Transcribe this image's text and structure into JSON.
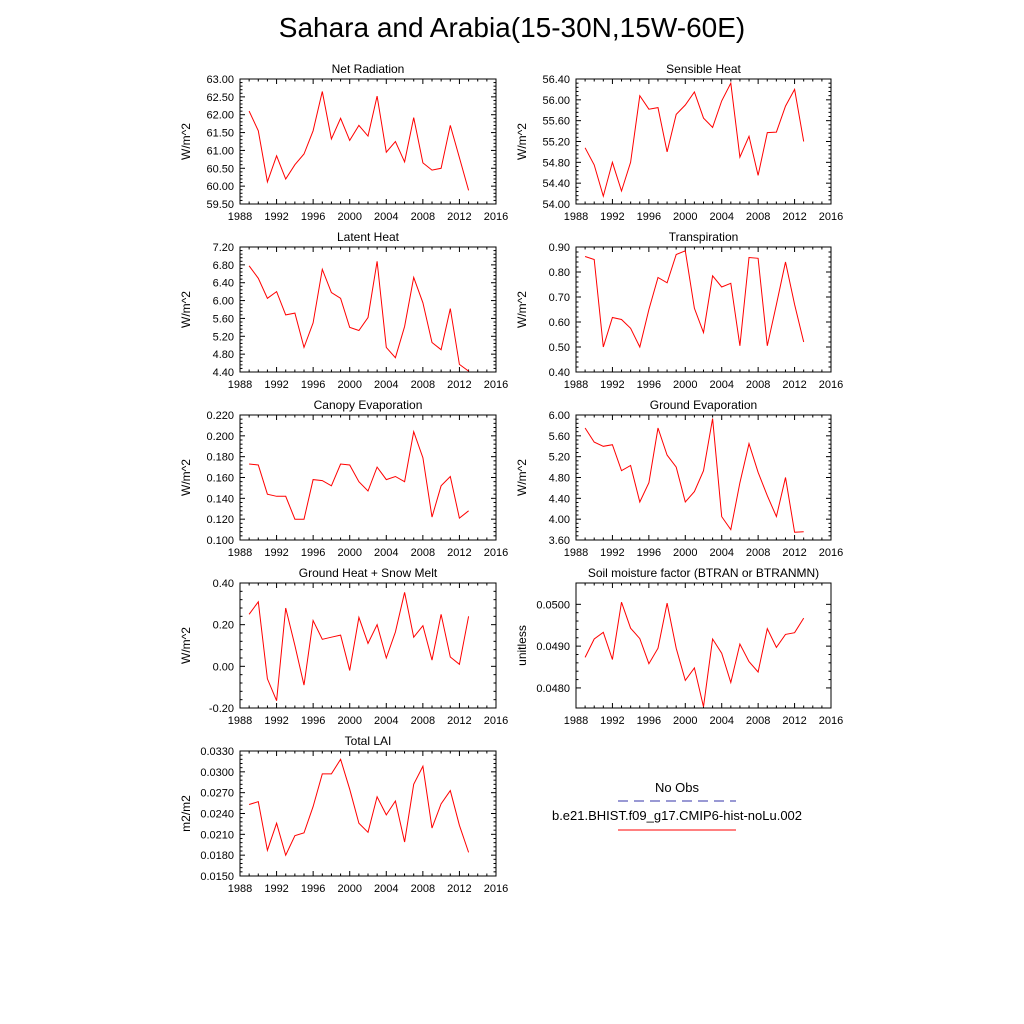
{
  "title": "Sahara and Arabia(15-30N,15W-60E)",
  "colors": {
    "model_line": "#ff0000",
    "obs_line": "#3333aa",
    "axis": "#000000"
  },
  "legend": {
    "obs_label": "No Obs",
    "model_label": "b.e21.BHIST.f09_g17.CMIP6-hist-noLu.002"
  },
  "chart_data": [
    {
      "type": "line",
      "title": "Net Radiation",
      "ylabel": "W/m^2",
      "xlim": [
        1988,
        2016
      ],
      "ylim": [
        59.5,
        63.0
      ],
      "xticks": [
        "1988",
        "1992",
        "1996",
        "2000",
        "2004",
        "2008",
        "2012",
        "2016"
      ],
      "yticks": [
        "59.50",
        "60.00",
        "60.50",
        "61.00",
        "61.50",
        "62.00",
        "62.50",
        "63.00"
      ],
      "x": [
        1989,
        1990,
        1991,
        1992,
        1993,
        1994,
        1995,
        1996,
        1997,
        1998,
        1999,
        2000,
        2001,
        2002,
        2003,
        2004,
        2005,
        2006,
        2007,
        2008,
        2009,
        2010,
        2011,
        2012,
        2013
      ],
      "values": [
        62.1,
        61.55,
        60.12,
        60.85,
        60.2,
        60.6,
        60.9,
        61.55,
        62.65,
        61.32,
        61.9,
        61.28,
        61.7,
        61.4,
        62.52,
        60.95,
        61.25,
        60.68,
        61.92,
        60.65,
        60.45,
        60.5,
        61.7,
        60.8,
        59.88
      ]
    },
    {
      "type": "line",
      "title": "Sensible Heat",
      "ylabel": "W/m^2",
      "xlim": [
        1988,
        2016
      ],
      "ylim": [
        54.0,
        56.4
      ],
      "xticks": [
        "1988",
        "1992",
        "1996",
        "2000",
        "2004",
        "2008",
        "2012",
        "2016"
      ],
      "yticks": [
        "54.00",
        "54.40",
        "54.80",
        "55.20",
        "55.60",
        "56.00",
        "56.40"
      ],
      "x": [
        1989,
        1990,
        1991,
        1992,
        1993,
        1994,
        1995,
        1996,
        1997,
        1998,
        1999,
        2000,
        2001,
        2002,
        2003,
        2004,
        2005,
        2006,
        2007,
        2008,
        2009,
        2010,
        2011,
        2012,
        2013
      ],
      "values": [
        55.08,
        54.75,
        54.15,
        54.8,
        54.25,
        54.8,
        56.08,
        55.82,
        55.85,
        55.0,
        55.72,
        55.9,
        56.15,
        55.65,
        55.47,
        55.98,
        56.32,
        54.9,
        55.3,
        54.55,
        55.37,
        55.38,
        55.88,
        56.2,
        55.2
      ]
    },
    {
      "type": "line",
      "title": "Latent Heat",
      "ylabel": "W/m^2",
      "xlim": [
        1988,
        2016
      ],
      "ylim": [
        4.4,
        7.2
      ],
      "xticks": [
        "1988",
        "1992",
        "1996",
        "2000",
        "2004",
        "2008",
        "2012",
        "2016"
      ],
      "yticks": [
        "4.40",
        "4.80",
        "5.20",
        "5.60",
        "6.00",
        "6.40",
        "6.80",
        "7.20"
      ],
      "x": [
        1989,
        1990,
        1991,
        1992,
        1993,
        1994,
        1995,
        1996,
        1997,
        1998,
        1999,
        2000,
        2001,
        2002,
        2003,
        2004,
        2005,
        2006,
        2007,
        2008,
        2009,
        2010,
        2011,
        2012,
        2013
      ],
      "values": [
        6.78,
        6.5,
        6.05,
        6.2,
        5.68,
        5.72,
        4.95,
        5.5,
        6.7,
        6.18,
        6.05,
        5.4,
        5.33,
        5.62,
        6.88,
        4.95,
        4.72,
        5.42,
        6.52,
        5.95,
        5.06,
        4.9,
        5.82,
        4.57,
        4.42
      ]
    },
    {
      "type": "line",
      "title": "Transpiration",
      "ylabel": "W/m^2",
      "xlim": [
        1988,
        2016
      ],
      "ylim": [
        0.4,
        0.9
      ],
      "xticks": [
        "1988",
        "1992",
        "1996",
        "2000",
        "2004",
        "2008",
        "2012",
        "2016"
      ],
      "yticks": [
        "0.40",
        "0.50",
        "0.60",
        "0.70",
        "0.80",
        "0.90"
      ],
      "x": [
        1989,
        1990,
        1991,
        1992,
        1993,
        1994,
        1995,
        1996,
        1997,
        1998,
        1999,
        2000,
        2001,
        2002,
        2003,
        2004,
        2005,
        2006,
        2007,
        2008,
        2009,
        2010,
        2011,
        2012,
        2013
      ],
      "values": [
        0.862,
        0.85,
        0.5,
        0.618,
        0.61,
        0.575,
        0.5,
        0.65,
        0.778,
        0.757,
        0.87,
        0.885,
        0.655,
        0.558,
        0.785,
        0.74,
        0.755,
        0.505,
        0.858,
        0.855,
        0.505,
        0.67,
        0.84,
        0.67,
        0.52
      ]
    },
    {
      "type": "line",
      "title": "Canopy Evaporation",
      "ylabel": "W/m^2",
      "xlim": [
        1988,
        2016
      ],
      "ylim": [
        0.1,
        0.22
      ],
      "xticks": [
        "1988",
        "1992",
        "1996",
        "2000",
        "2004",
        "2008",
        "2012",
        "2016"
      ],
      "yticks": [
        "0.100",
        "0.120",
        "0.140",
        "0.160",
        "0.180",
        "0.200",
        "0.220"
      ],
      "x": [
        1989,
        1990,
        1991,
        1992,
        1993,
        1994,
        1995,
        1996,
        1997,
        1998,
        1999,
        2000,
        2001,
        2002,
        2003,
        2004,
        2005,
        2006,
        2007,
        2008,
        2009,
        2010,
        2011,
        2012,
        2013
      ],
      "values": [
        0.173,
        0.172,
        0.144,
        0.142,
        0.142,
        0.12,
        0.12,
        0.158,
        0.157,
        0.152,
        0.173,
        0.172,
        0.156,
        0.147,
        0.17,
        0.158,
        0.161,
        0.156,
        0.204,
        0.179,
        0.122,
        0.152,
        0.161,
        0.121,
        0.128
      ]
    },
    {
      "type": "line",
      "title": "Ground Evaporation",
      "ylabel": "W/m^2",
      "xlim": [
        1988,
        2016
      ],
      "ylim": [
        3.6,
        6.0
      ],
      "xticks": [
        "1988",
        "1992",
        "1996",
        "2000",
        "2004",
        "2008",
        "2012",
        "2016"
      ],
      "yticks": [
        "3.60",
        "4.00",
        "4.40",
        "4.80",
        "5.20",
        "5.60",
        "6.00"
      ],
      "x": [
        1989,
        1990,
        1991,
        1992,
        1993,
        1994,
        1995,
        1996,
        1997,
        1998,
        1999,
        2000,
        2001,
        2002,
        2003,
        2004,
        2005,
        2006,
        2007,
        2008,
        2009,
        2010,
        2011,
        2012,
        2013
      ],
      "values": [
        5.75,
        5.48,
        5.4,
        5.43,
        4.93,
        5.03,
        4.33,
        4.7,
        5.75,
        5.23,
        5.0,
        4.33,
        4.53,
        4.93,
        5.93,
        4.05,
        3.8,
        4.7,
        5.45,
        4.9,
        4.45,
        4.05,
        4.8,
        3.75,
        3.76
      ]
    },
    {
      "type": "line",
      "title": "Ground Heat + Snow Melt",
      "ylabel": "W/m^2",
      "xlim": [
        1988,
        2016
      ],
      "ylim": [
        -0.2,
        0.4
      ],
      "xticks": [
        "1988",
        "1992",
        "1996",
        "2000",
        "2004",
        "2008",
        "2012",
        "2016"
      ],
      "yticks": [
        "-0.20",
        "0.00",
        "0.20",
        "0.40"
      ],
      "x": [
        1989,
        1990,
        1991,
        1992,
        1993,
        1994,
        1995,
        1996,
        1997,
        1998,
        1999,
        2000,
        2001,
        2002,
        2003,
        2004,
        2005,
        2006,
        2007,
        2008,
        2009,
        2010,
        2011,
        2012,
        2013
      ],
      "values": [
        0.25,
        0.31,
        -0.06,
        -0.165,
        0.28,
        0.1,
        -0.09,
        0.22,
        0.13,
        0.14,
        0.15,
        -0.02,
        0.235,
        0.11,
        0.2,
        0.04,
        0.165,
        0.355,
        0.14,
        0.195,
        0.03,
        0.25,
        0.045,
        0.01,
        0.24
      ]
    },
    {
      "type": "line",
      "title": "Soil moisture factor (BTRAN or BTRANMN)",
      "ylabel": "unitless",
      "xlim": [
        1988,
        2016
      ],
      "ylim": [
        0.04752,
        0.05051
      ],
      "xticks": [
        "1988",
        "1992",
        "1996",
        "2000",
        "2004",
        "2008",
        "2012",
        "2016"
      ],
      "yticks": [
        "0.0480",
        "0.0490",
        "0.0500"
      ],
      "ytick_values": [
        0.048,
        0.049,
        0.05
      ],
      "x": [
        1989,
        1990,
        1991,
        1992,
        1993,
        1994,
        1995,
        1996,
        1997,
        1998,
        1999,
        2000,
        2001,
        2002,
        2003,
        2004,
        2005,
        2006,
        2007,
        2008,
        2009,
        2010,
        2011,
        2012,
        2013
      ],
      "values": [
        0.04873,
        0.04917,
        0.04933,
        0.04868,
        0.05005,
        0.04943,
        0.04918,
        0.04858,
        0.04895,
        0.05003,
        0.04895,
        0.04818,
        0.04848,
        0.04755,
        0.04917,
        0.04883,
        0.04813,
        0.04905,
        0.04863,
        0.04838,
        0.04942,
        0.04897,
        0.04928,
        0.04932,
        0.04967
      ]
    },
    {
      "type": "line",
      "title": "Total LAI",
      "ylabel": "m2/m2",
      "xlim": [
        1988,
        2016
      ],
      "ylim": [
        0.015,
        0.033
      ],
      "xticks": [
        "1988",
        "1992",
        "1996",
        "2000",
        "2004",
        "2008",
        "2012",
        "2016"
      ],
      "yticks": [
        "0.0150",
        "0.0180",
        "0.0210",
        "0.0240",
        "0.0270",
        "0.0300",
        "0.0330"
      ],
      "x": [
        1989,
        1990,
        1991,
        1992,
        1993,
        1994,
        1995,
        1996,
        1997,
        1998,
        1999,
        2000,
        2001,
        2002,
        2003,
        2004,
        2005,
        2006,
        2007,
        2008,
        2009,
        2010,
        2011,
        2012,
        2013
      ],
      "values": [
        0.0253,
        0.0257,
        0.0187,
        0.0226,
        0.018,
        0.0208,
        0.0212,
        0.025,
        0.0297,
        0.0297,
        0.0318,
        0.0275,
        0.0226,
        0.0213,
        0.0264,
        0.0238,
        0.0258,
        0.0199,
        0.0282,
        0.0308,
        0.0219,
        0.0254,
        0.0273,
        0.0223,
        0.0184
      ]
    }
  ]
}
